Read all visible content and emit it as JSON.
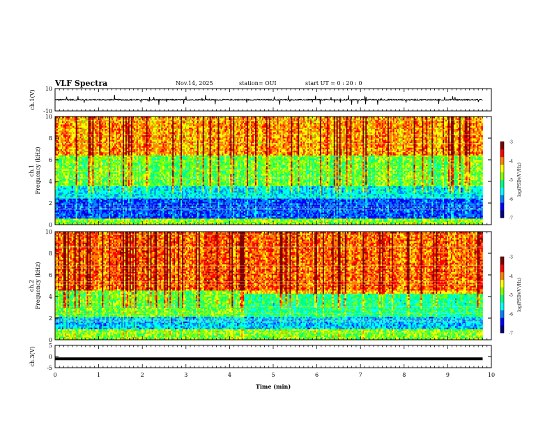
{
  "header": {
    "title": "VLF Spectra",
    "date": "Nov.14, 2025",
    "station": "station= OUI",
    "start": "start UT =  0 : 20 : 0"
  },
  "colors": {
    "colormap": [
      "#00007f",
      "#0000ff",
      "#0080ff",
      "#00ffff",
      "#00ff80",
      "#80ff00",
      "#ffff00",
      "#ff8000",
      "#ff0000",
      "#7f0000"
    ]
  },
  "chart_data": [
    {
      "type": "line",
      "panel": "ch1-waveform",
      "ylabel": "ch.1(V)",
      "ylim": [
        -10,
        10
      ],
      "yticks": [
        10,
        -10
      ],
      "xlim": [
        0,
        10
      ],
      "baseline": 0,
      "description_values": {
        "typical_amplitude_v": 0.5,
        "spike_amplitude_v": 3
      }
    },
    {
      "type": "heatmap",
      "panel": "ch1-spectrogram",
      "ylabel": "ch.1 Frequency (kHz)",
      "ylim": [
        0,
        10
      ],
      "yticks": [
        0,
        2,
        4,
        6,
        8,
        10
      ],
      "xlim": [
        0,
        9.8
      ],
      "colorbar": {
        "label": "log(PSD)(V²/Hz)",
        "range": [
          -7,
          -3
        ],
        "ticks": [
          -3,
          -4,
          -5,
          -6,
          -7
        ]
      },
      "bands": [
        {
          "fmin": 0,
          "fmax": 0.6,
          "level": -4.8
        },
        {
          "fmin": 0.6,
          "fmax": 2.4,
          "level": -6.2
        },
        {
          "fmin": 2.4,
          "fmax": 3.6,
          "level": -5.6
        },
        {
          "fmin": 3.6,
          "fmax": 6.5,
          "level": -4.9
        },
        {
          "fmin": 6.5,
          "fmax": 10,
          "level": -4.1
        }
      ]
    },
    {
      "type": "heatmap",
      "panel": "ch2-spectrogram",
      "ylabel": "ch.2 Frequency (kHz)",
      "ylim": [
        0,
        10
      ],
      "yticks": [
        0,
        2,
        4,
        6,
        8,
        10
      ],
      "xlim": [
        0,
        9.8
      ],
      "colorbar": {
        "label": "log(PSD)(V²/Hz)",
        "range": [
          -7,
          -3
        ],
        "ticks": [
          -3,
          -4,
          -5,
          -6,
          -7
        ]
      },
      "bands": [
        {
          "fmin": 0,
          "fmax": 1.0,
          "level": -4.8
        },
        {
          "fmin": 1.0,
          "fmax": 2.2,
          "level": -5.8
        },
        {
          "fmin": 2.2,
          "fmax": 4.6,
          "level": -4.9
        },
        {
          "fmin": 4.6,
          "fmax": 10,
          "level": -3.9
        }
      ]
    },
    {
      "type": "line",
      "panel": "ch3-waveform",
      "ylabel": "ch.3(V)",
      "ylim": [
        -5,
        5
      ],
      "yticks": [
        5,
        0,
        -5
      ],
      "xlim": [
        0,
        10
      ],
      "constant_value": -1,
      "xlabel": "Time (min)",
      "xticks": [
        0,
        1,
        2,
        3,
        4,
        5,
        6,
        7,
        8,
        9,
        10
      ]
    }
  ]
}
